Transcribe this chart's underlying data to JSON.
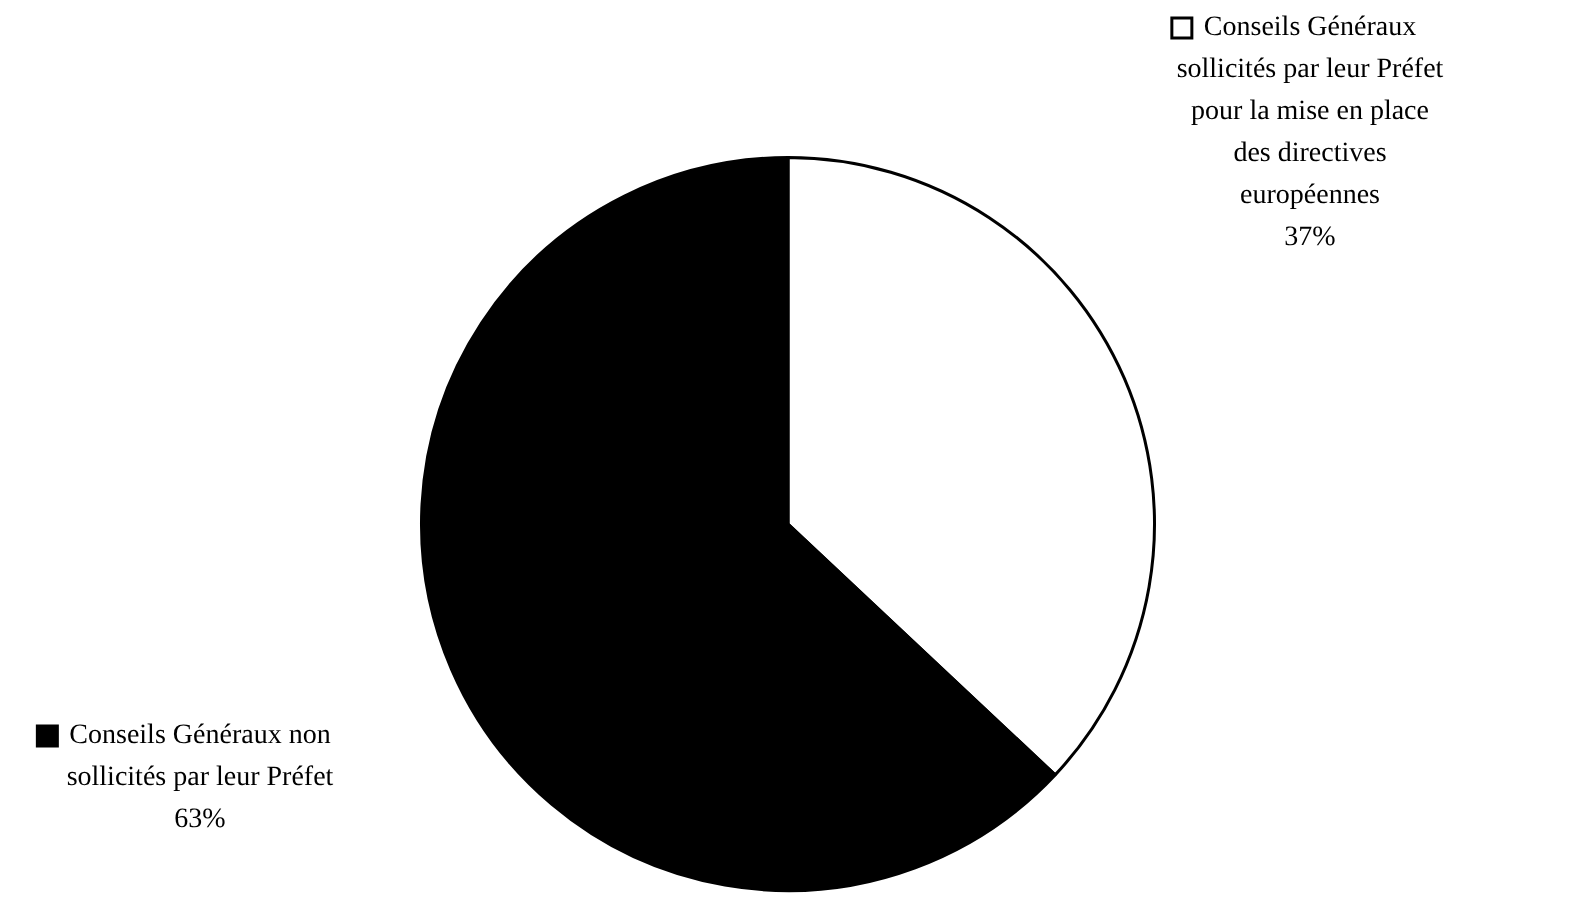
{
  "chart_data": {
    "type": "pie",
    "categories": [
      "Conseils Généraux sollicités par leur Préfet pour la mise en place des directives européennes",
      "Conseils Généraux non sollicités par leur Préfet"
    ],
    "values": [
      37,
      63
    ],
    "value_labels": [
      "37%",
      "63%"
    ],
    "colors": [
      "#ffffff",
      "#000000"
    ],
    "legend": "top left"
  }
}
